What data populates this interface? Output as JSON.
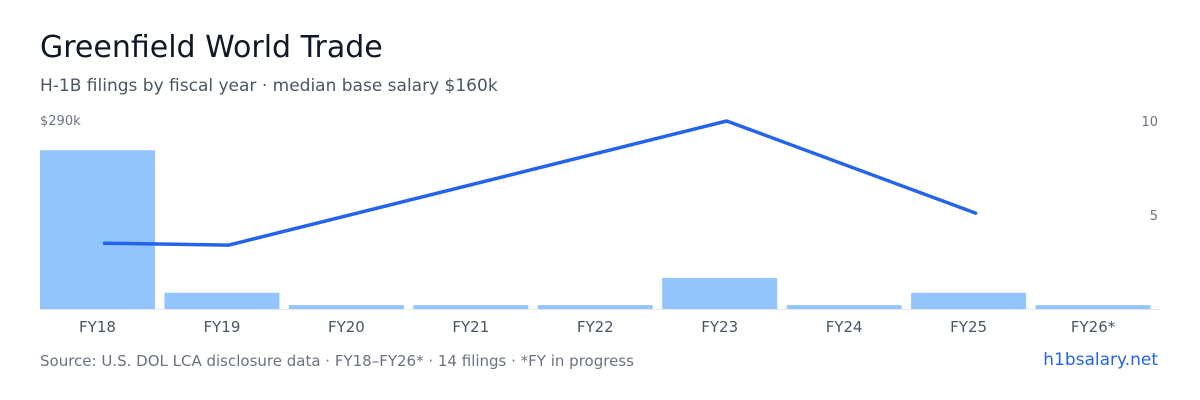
{
  "header": {
    "title": "Greenfield World Trade",
    "subtitle": "H-1B filings by fiscal year · median base salary $160k"
  },
  "colors": {
    "bar": "#93c5fd",
    "line": "#2563eb",
    "axis_text": "#6b7280",
    "baseline": "#e5e7eb"
  },
  "chart_data": {
    "type": "bar",
    "categories": [
      "FY18",
      "FY19",
      "FY20",
      "FY21",
      "FY22",
      "FY23",
      "FY24",
      "FY25",
      "FY26*"
    ],
    "series": [
      {
        "type": "bar",
        "axis": "left",
        "values": [
          245000,
          25000,
          6000,
          6000,
          6000,
          48000,
          6000,
          25000,
          6000
        ]
      },
      {
        "type": "line",
        "axis": "right",
        "values": [
          3.5,
          3.4,
          null,
          null,
          null,
          10,
          null,
          5.1,
          null
        ]
      }
    ],
    "y_left": {
      "max_label": "$290k",
      "range": [
        0,
        290000
      ]
    },
    "y_right": {
      "ticks": [
        {
          "value": 10,
          "label": "10"
        },
        {
          "value": 5,
          "label": "5"
        }
      ],
      "range": [
        0,
        10
      ]
    },
    "grid": false
  },
  "footer": {
    "source": "Source: U.S. DOL LCA disclosure data · FY18–FY26* · 14 filings · *FY in progress",
    "brand": "h1bsalary.net"
  }
}
